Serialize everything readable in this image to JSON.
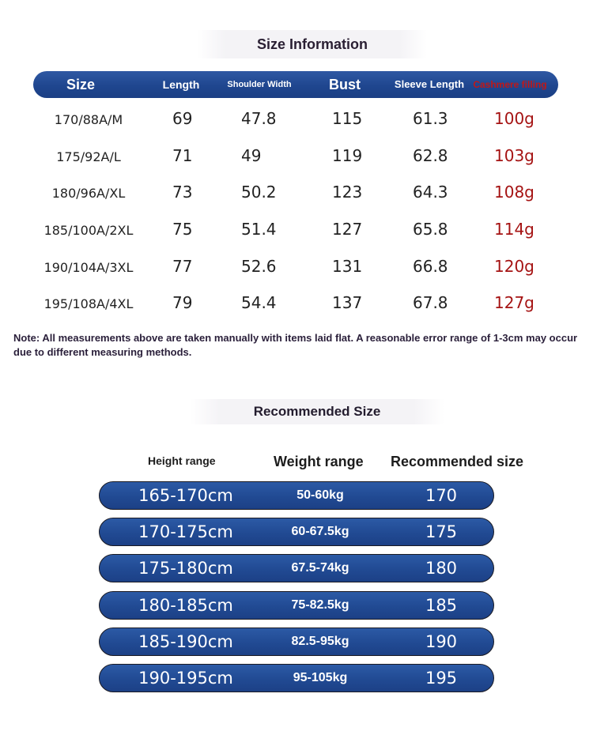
{
  "size_info": {
    "title": "Size Information",
    "headers": {
      "size": "Size",
      "length": "Length",
      "shoulder": "Shoulder Width",
      "bust": "Bust",
      "sleeve": "Sleeve Length",
      "cashmere": "Cashmere filling"
    },
    "rows": [
      {
        "size": "170/88A/M",
        "length": "69",
        "shoulder": "47.8",
        "bust": "115",
        "sleeve": "61.3",
        "cashmere": "100g"
      },
      {
        "size": "175/92A/L",
        "length": "71",
        "shoulder": "49",
        "bust": "119",
        "sleeve": "62.8",
        "cashmere": "103g"
      },
      {
        "size": "180/96A/XL",
        "length": "73",
        "shoulder": "50.2",
        "bust": "123",
        "sleeve": "64.3",
        "cashmere": "108g"
      },
      {
        "size": "185/100A/2XL",
        "length": "75",
        "shoulder": "51.4",
        "bust": "127",
        "sleeve": "65.8",
        "cashmere": "114g"
      },
      {
        "size": "190/104A/3XL",
        "length": "77",
        "shoulder": "52.6",
        "bust": "131",
        "sleeve": "66.8",
        "cashmere": "120g"
      },
      {
        "size": "195/108A/4XL",
        "length": "79",
        "shoulder": "54.4",
        "bust": "137",
        "sleeve": "67.8",
        "cashmere": "127g"
      }
    ],
    "note": "Note: All measurements above are taken manually with items laid flat. A reasonable error range of 1-3cm may occur due to different measuring methods."
  },
  "recommended": {
    "title": "Recommended Size",
    "headers": {
      "height": "Height range",
      "weight": "Weight range",
      "size": "Recommended size"
    },
    "rows": [
      {
        "height": "165-170cm",
        "weight": "50-60kg",
        "size": "170"
      },
      {
        "height": "170-175cm",
        "weight": "60-67.5kg",
        "size": "175"
      },
      {
        "height": "175-180cm",
        "weight": "67.5-74kg",
        "size": "180"
      },
      {
        "height": "180-185cm",
        "weight": "75-82.5kg",
        "size": "185"
      },
      {
        "height": "185-190cm",
        "weight": "82.5-95kg",
        "size": "190"
      },
      {
        "height": "190-195cm",
        "weight": "95-105kg",
        "size": "195"
      }
    ]
  },
  "colors": {
    "bar_blue": "#214a93",
    "accent_red": "#a51313"
  }
}
